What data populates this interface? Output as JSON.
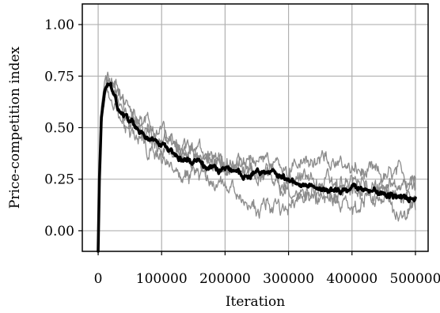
{
  "chart_data": {
    "type": "line",
    "title": "",
    "xlabel": "Iteration",
    "ylabel": "Price-competition index",
    "xlim": [
      -25000,
      520000
    ],
    "ylim": [
      -0.1,
      1.1
    ],
    "xticks": [
      0,
      100000,
      200000,
      300000,
      400000,
      500000
    ],
    "xtick_labels": [
      "0",
      "100000",
      "200000",
      "300000",
      "400000",
      "500000"
    ],
    "yticks": [
      0.0,
      0.25,
      0.5,
      0.75,
      1.0
    ],
    "ytick_labels": [
      "0.00",
      "0.25",
      "0.50",
      "0.75",
      "1.00"
    ],
    "grid": true,
    "legend": "none",
    "colors": {
      "mean": "#000000",
      "runs": "#8c8c8c",
      "grid": "#b0b0b0"
    },
    "series": [
      {
        "role": "mean",
        "x": [
          0,
          2000,
          5000,
          10000,
          15000,
          20000,
          25000,
          30000,
          40000,
          50000,
          60000,
          70000,
          80000,
          90000,
          100000,
          110000,
          120000,
          130000,
          140000,
          150000,
          160000,
          170000,
          180000,
          190000,
          200000,
          210000,
          220000,
          230000,
          240000,
          250000,
          260000,
          270000,
          280000,
          290000,
          300000,
          310000,
          320000,
          330000,
          340000,
          350000,
          360000,
          370000,
          380000,
          390000,
          400000,
          410000,
          420000,
          430000,
          440000,
          450000,
          460000,
          470000,
          480000,
          490000,
          500000
        ],
        "y": [
          -0.1,
          0.25,
          0.55,
          0.67,
          0.7,
          0.68,
          0.64,
          0.6,
          0.56,
          0.53,
          0.51,
          0.48,
          0.46,
          0.44,
          0.42,
          0.4,
          0.38,
          0.36,
          0.35,
          0.34,
          0.33,
          0.31,
          0.29,
          0.28,
          0.3,
          0.29,
          0.28,
          0.27,
          0.26,
          0.28,
          0.27,
          0.27,
          0.28,
          0.27,
          0.25,
          0.24,
          0.24,
          0.22,
          0.22,
          0.21,
          0.2,
          0.2,
          0.19,
          0.2,
          0.21,
          0.2,
          0.2,
          0.21,
          0.2,
          0.19,
          0.18,
          0.17,
          0.17,
          0.16,
          0.16
        ]
      },
      {
        "role": "run",
        "x": [
          0,
          5000,
          10000,
          15000,
          20000,
          30000,
          40000,
          50000,
          60000,
          70000,
          80000,
          90000,
          100000,
          120000,
          140000,
          160000,
          180000,
          200000,
          220000,
          240000,
          260000,
          280000,
          300000,
          320000,
          340000,
          360000,
          380000,
          400000,
          420000,
          440000,
          460000,
          480000,
          500000
        ],
        "y": [
          -0.1,
          0.55,
          0.7,
          0.76,
          0.74,
          0.68,
          0.64,
          0.6,
          0.58,
          0.55,
          0.52,
          0.49,
          0.47,
          0.44,
          0.4,
          0.37,
          0.35,
          0.33,
          0.33,
          0.33,
          0.34,
          0.34,
          0.33,
          0.34,
          0.32,
          0.33,
          0.31,
          0.29,
          0.27,
          0.26,
          0.25,
          0.26,
          0.26
        ]
      },
      {
        "role": "run",
        "x": [
          0,
          5000,
          10000,
          15000,
          20000,
          30000,
          40000,
          50000,
          60000,
          70000,
          80000,
          90000,
          100000,
          120000,
          140000,
          160000,
          180000,
          200000,
          220000,
          240000,
          260000,
          280000,
          300000,
          320000,
          340000,
          360000,
          380000,
          400000,
          420000,
          440000,
          460000,
          480000,
          500000
        ],
        "y": [
          -0.1,
          0.5,
          0.64,
          0.66,
          0.62,
          0.58,
          0.54,
          0.49,
          0.46,
          0.43,
          0.4,
          0.37,
          0.35,
          0.31,
          0.28,
          0.25,
          0.22,
          0.18,
          0.15,
          0.14,
          0.13,
          0.12,
          0.14,
          0.16,
          0.17,
          0.16,
          0.15,
          0.14,
          0.15,
          0.14,
          0.12,
          0.11,
          0.1
        ]
      },
      {
        "role": "run",
        "x": [
          0,
          5000,
          10000,
          15000,
          20000,
          30000,
          40000,
          50000,
          60000,
          70000,
          80000,
          90000,
          100000,
          120000,
          140000,
          160000,
          180000,
          200000,
          220000,
          240000,
          260000,
          280000,
          300000,
          320000,
          340000,
          360000,
          380000,
          400000,
          420000,
          440000,
          460000,
          480000,
          500000
        ],
        "y": [
          -0.1,
          0.6,
          0.72,
          0.74,
          0.7,
          0.64,
          0.58,
          0.54,
          0.52,
          0.49,
          0.47,
          0.45,
          0.43,
          0.4,
          0.37,
          0.34,
          0.31,
          0.31,
          0.3,
          0.29,
          0.26,
          0.24,
          0.22,
          0.2,
          0.2,
          0.19,
          0.18,
          0.19,
          0.2,
          0.19,
          0.18,
          0.17,
          0.17
        ]
      },
      {
        "role": "run",
        "x": [
          0,
          5000,
          10000,
          15000,
          20000,
          30000,
          40000,
          50000,
          60000,
          70000,
          80000,
          90000,
          100000,
          120000,
          140000,
          160000,
          180000,
          200000,
          220000,
          240000,
          260000,
          280000,
          300000,
          320000,
          340000,
          360000,
          380000,
          400000,
          420000,
          440000,
          460000,
          480000,
          500000
        ],
        "y": [
          -0.1,
          0.52,
          0.66,
          0.72,
          0.7,
          0.65,
          0.6,
          0.56,
          0.54,
          0.51,
          0.48,
          0.46,
          0.44,
          0.41,
          0.38,
          0.36,
          0.33,
          0.3,
          0.28,
          0.27,
          0.27,
          0.26,
          0.25,
          0.24,
          0.24,
          0.23,
          0.22,
          0.22,
          0.22,
          0.21,
          0.22,
          0.21,
          0.2
        ]
      }
    ]
  }
}
